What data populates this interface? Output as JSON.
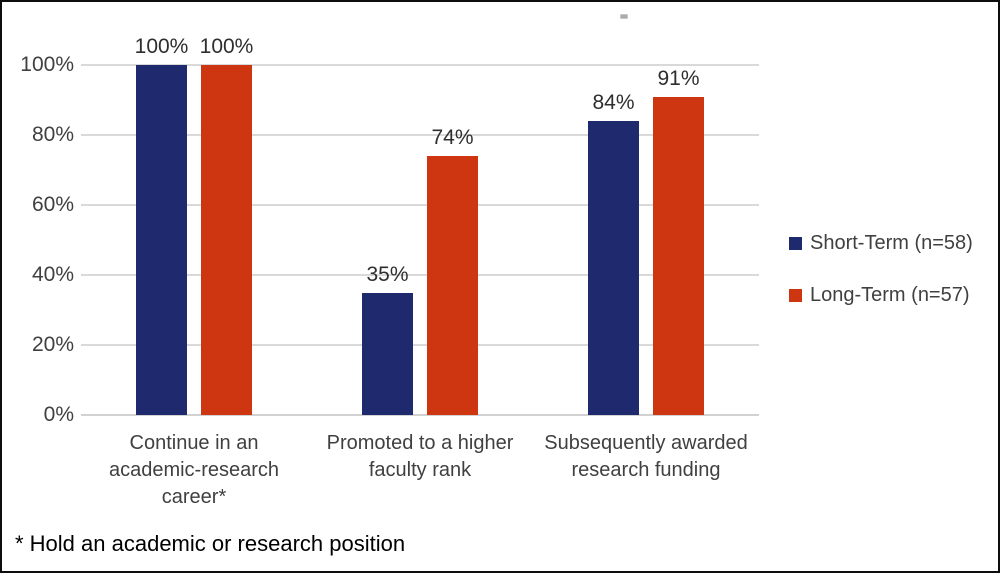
{
  "chart_data": {
    "type": "bar",
    "categories": [
      "Continue in an academic-research career*",
      "Promoted to a higher faculty rank",
      "Subsequently awarded research funding"
    ],
    "series": [
      {
        "name": "Short-Term (n=58)",
        "color": "#1f2a6e",
        "values": [
          100,
          35,
          84
        ]
      },
      {
        "name": "Long-Term (n=57)",
        "color": "#ce3611",
        "values": [
          100,
          74,
          91
        ]
      }
    ],
    "value_suffix": "%",
    "data_labels": [
      "100%",
      "100%",
      "35%",
      "74%",
      "84%",
      "91%"
    ],
    "title": "",
    "xlabel": "",
    "ylabel": "",
    "ylim": [
      0,
      100
    ],
    "yticks": [
      0,
      20,
      40,
      60,
      80,
      100
    ],
    "ytick_labels": [
      "0%",
      "20%",
      "40%",
      "60%",
      "80%",
      "100%"
    ],
    "grid": true,
    "legend_position": "right"
  },
  "footnote": "* Hold an academic or research position",
  "colors": {
    "grid": "#d9d9d9",
    "axis_text": "#404040",
    "label_text": "#2e2e2e",
    "footnote_text": "#000000",
    "frame_border": "#0d0d0d"
  }
}
